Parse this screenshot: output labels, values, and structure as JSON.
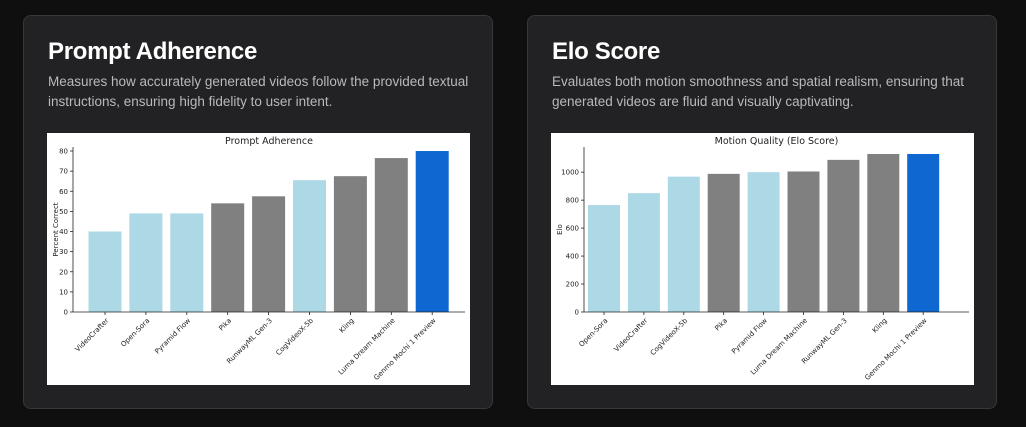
{
  "cards": [
    {
      "title": "Prompt Adherence",
      "description": "Measures how accurately generated videos follow the provided textual instructions, ensuring high fidelity to user intent."
    },
    {
      "title": "Elo Score",
      "description": "Evaluates both motion smoothness and spatial realism, ensuring that generated videos are fluid and visually captivating."
    }
  ],
  "colors": {
    "light_blue": "#add8e6",
    "gray": "#808080",
    "highlight_blue": "#0f67d2"
  },
  "chart_data": [
    {
      "type": "bar",
      "title": "Prompt Adherence",
      "xlabel": "",
      "ylabel": "Percent Correct",
      "ylim": [
        0,
        82
      ],
      "yticks": [
        0,
        10,
        20,
        30,
        40,
        50,
        60,
        70,
        80
      ],
      "grid": false,
      "categories": [
        "VideoCrafter",
        "Open-Sora",
        "Pyramid Flow",
        "Pika",
        "RunwayML Gen-3",
        "CogVideoX-5b",
        "Kling",
        "Luma Dream Machine",
        "Genmo Mochi 1 Preview"
      ],
      "values": [
        40,
        49,
        49,
        54,
        57.5,
        65.5,
        67.5,
        76.5,
        80
      ],
      "bar_colors": [
        "light_blue",
        "light_blue",
        "light_blue",
        "gray",
        "gray",
        "light_blue",
        "gray",
        "gray",
        "highlight_blue"
      ]
    },
    {
      "type": "bar",
      "title": "Motion Quality (Elo Score)",
      "xlabel": "",
      "ylabel": "Elo",
      "ylim": [
        0,
        1180
      ],
      "yticks": [
        0,
        200,
        400,
        600,
        800,
        1000
      ],
      "grid": false,
      "categories": [
        "Open-Sora",
        "VideoCrafter",
        "CogVideoX-5b",
        "Pika",
        "Pyramid Flow",
        "Luma Dream Machine",
        "RunwayML Gen-3",
        "Kling",
        "Genmo Mochi 1 Preview"
      ],
      "values": [
        765,
        850,
        968,
        988,
        1000,
        1005,
        1088,
        1130,
        1130
      ],
      "bar_colors": [
        "light_blue",
        "light_blue",
        "light_blue",
        "gray",
        "light_blue",
        "gray",
        "gray",
        "gray",
        "highlight_blue"
      ]
    }
  ]
}
